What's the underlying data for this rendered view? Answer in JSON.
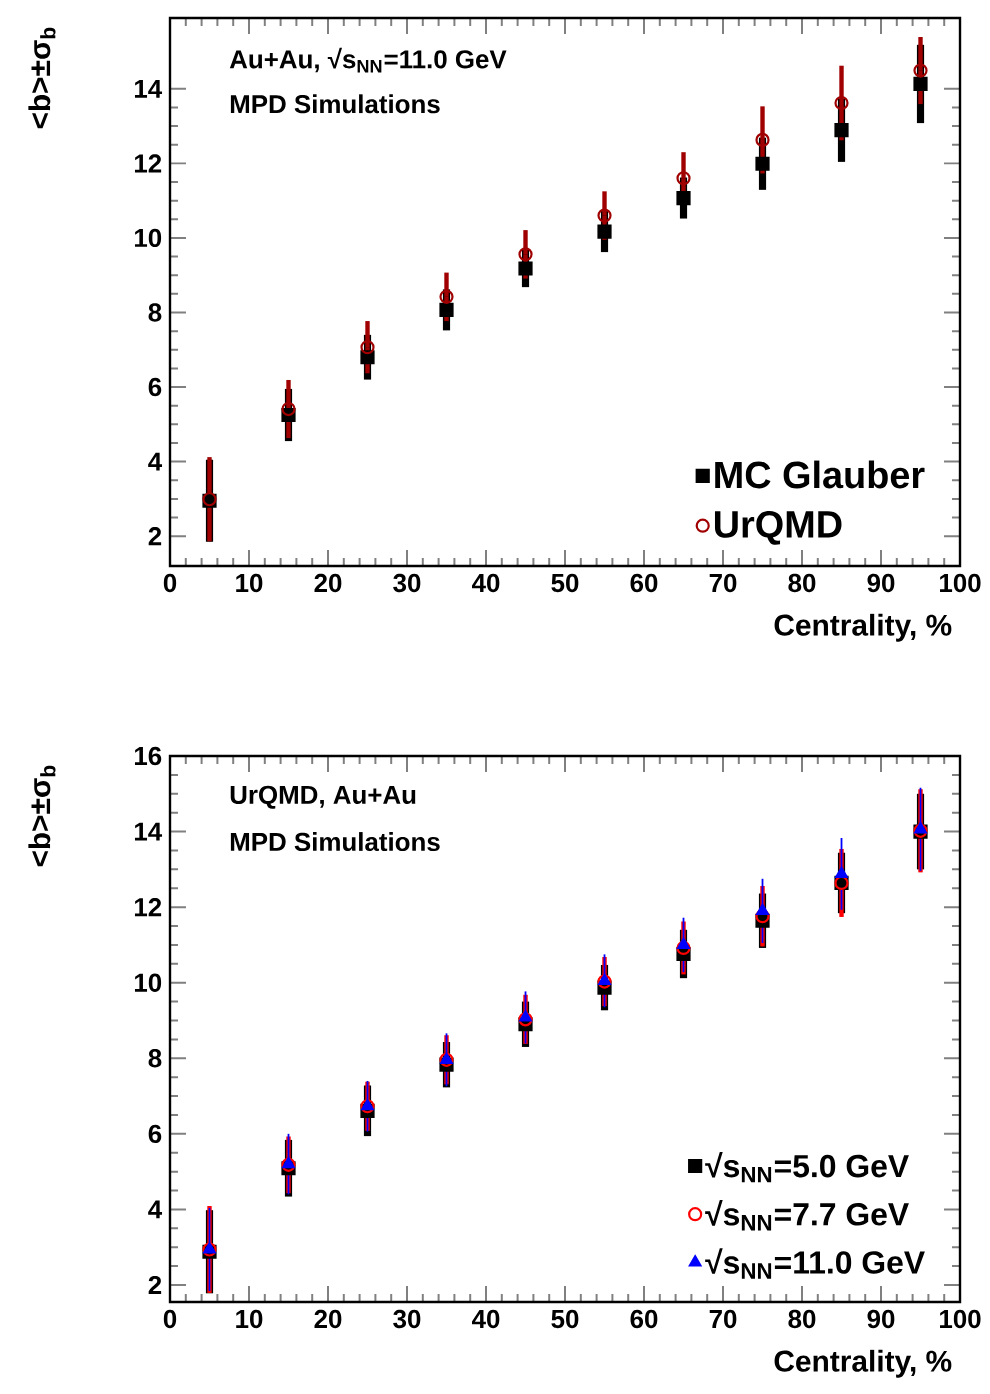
{
  "chart_data": [
    {
      "type": "scatter",
      "xlabel": "Centrality, %",
      "ylabel": "<b>±σ$_{b}$",
      "annotations": [
        "Au+Au, √s$_{NN}$=11.0 GeV",
        "MPD Simulations"
      ],
      "x": [
        5,
        15,
        25,
        35,
        45,
        55,
        65,
        75,
        85,
        95
      ],
      "series": [
        {
          "name": "MC Glauber",
          "color": "#000000",
          "marker": "square",
          "values": [
            2.95,
            5.25,
            6.8,
            8.07,
            9.18,
            10.17,
            11.07,
            11.99,
            12.89,
            14.13
          ],
          "errors": [
            1.1,
            0.7,
            0.6,
            0.55,
            0.5,
            0.55,
            0.55,
            0.7,
            0.85,
            1.05
          ]
        },
        {
          "name": "UrQMD",
          "color": "#a00000",
          "marker": "circle",
          "values": [
            2.99,
            5.41,
            7.07,
            8.42,
            9.56,
            10.6,
            11.6,
            12.63,
            13.62,
            14.49
          ],
          "errors": [
            1.13,
            0.78,
            0.7,
            0.65,
            0.65,
            0.65,
            0.7,
            0.9,
            1.0,
            0.9
          ]
        }
      ],
      "xlim": [
        0,
        100
      ],
      "ylim": [
        1.2,
        15.9
      ],
      "xticks": [
        0,
        10,
        20,
        30,
        40,
        50,
        60,
        70,
        80,
        90,
        100
      ],
      "yticks": [
        2,
        4,
        6,
        8,
        10,
        12,
        14
      ],
      "legend": "bottom right"
    },
    {
      "type": "scatter",
      "xlabel": "Centrality, %",
      "ylabel": "<b>±σ$_{b}$",
      "annotations": [
        "UrQMD, Au+Au",
        "MPD Simulations"
      ],
      "x": [
        5,
        15,
        25,
        35,
        45,
        55,
        65,
        75,
        85,
        95
      ],
      "series": [
        {
          "name": "√s$_{NN}$=5.0 GeV",
          "color": "#000000",
          "marker": "square",
          "values": [
            2.88,
            5.09,
            6.61,
            7.83,
            8.9,
            9.87,
            10.76,
            11.64,
            12.64,
            14.0
          ],
          "errors": [
            1.1,
            0.75,
            0.67,
            0.6,
            0.6,
            0.6,
            0.64,
            0.72,
            0.8,
            1.0
          ]
        },
        {
          "name": "√s$_{NN}$=7.7 GeV",
          "color": "#ff0000",
          "marker": "circle",
          "values": [
            2.94,
            5.18,
            6.73,
            7.96,
            9.03,
            10.03,
            10.92,
            11.76,
            12.64,
            14.02
          ],
          "errors": [
            1.15,
            0.75,
            0.65,
            0.65,
            0.65,
            0.65,
            0.7,
            0.8,
            0.9,
            1.1
          ]
        },
        {
          "name": "√s$_{NN}$=11.0 GeV",
          "color": "#0000ff",
          "marker": "triangle",
          "values": [
            2.94,
            5.2,
            6.73,
            7.96,
            9.08,
            10.05,
            11.0,
            11.9,
            12.88,
            14.06
          ],
          "errors": [
            1.1,
            0.8,
            0.67,
            0.7,
            0.69,
            0.7,
            0.72,
            0.85,
            0.95,
            1.1
          ]
        }
      ],
      "xlim": [
        0,
        100
      ],
      "ylim": [
        1.55,
        16
      ],
      "xticks": [
        0,
        10,
        20,
        30,
        40,
        50,
        60,
        70,
        80,
        90,
        100
      ],
      "yticks": [
        2,
        4,
        6,
        8,
        10,
        12,
        14,
        16
      ],
      "legend": "bottom right"
    }
  ]
}
